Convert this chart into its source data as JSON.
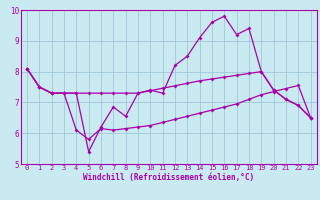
{
  "bg_color": "#c8eaf0",
  "grid_color": "#a0c8d8",
  "line_color": "#aa00aa",
  "xlabel": "Windchill (Refroidissement éolien,°C)",
  "xlim": [
    -0.5,
    23.5
  ],
  "ylim": [
    5,
    10
  ],
  "yticks": [
    5,
    6,
    7,
    8,
    9,
    10
  ],
  "xticks": [
    0,
    1,
    2,
    3,
    4,
    5,
    6,
    7,
    8,
    9,
    10,
    11,
    12,
    13,
    14,
    15,
    16,
    17,
    18,
    19,
    20,
    21,
    22,
    23
  ],
  "series1_x": [
    0,
    1,
    2,
    3,
    4,
    5,
    6,
    7,
    8,
    9,
    10,
    11,
    12,
    13,
    14,
    15,
    16,
    17,
    18,
    19,
    20,
    21,
    22,
    23
  ],
  "series1_y": [
    8.1,
    7.5,
    7.3,
    7.3,
    7.3,
    5.4,
    6.2,
    6.85,
    6.55,
    7.3,
    7.4,
    7.3,
    8.2,
    8.5,
    9.1,
    9.6,
    9.8,
    9.2,
    9.4,
    8.0,
    7.4,
    7.1,
    6.9,
    6.5
  ],
  "series2_x": [
    0,
    1,
    2,
    3,
    4,
    5,
    6,
    7,
    8,
    9,
    10,
    11,
    12,
    13,
    14,
    15,
    16,
    17,
    18,
    19,
    20,
    21,
    22,
    23
  ],
  "series2_y": [
    8.1,
    7.5,
    7.3,
    7.3,
    6.1,
    5.8,
    6.15,
    6.1,
    6.15,
    6.2,
    6.25,
    6.35,
    6.45,
    6.55,
    6.65,
    6.75,
    6.85,
    6.95,
    7.1,
    7.25,
    7.35,
    7.45,
    7.55,
    6.5
  ],
  "series3_x": [
    0,
    1,
    2,
    3,
    4,
    5,
    6,
    7,
    8,
    9,
    10,
    11,
    12,
    13,
    14,
    15,
    16,
    17,
    18,
    19,
    20,
    21,
    22,
    23
  ],
  "series3_y": [
    8.1,
    7.5,
    7.3,
    7.3,
    7.3,
    7.3,
    7.3,
    7.3,
    7.3,
    7.3,
    7.38,
    7.46,
    7.54,
    7.62,
    7.7,
    7.76,
    7.82,
    7.88,
    7.94,
    8.0,
    7.4,
    7.1,
    6.9,
    6.5
  ],
  "xlabel_fontsize": 5.5,
  "tick_fontsize": 5.0,
  "linewidth": 0.9,
  "markersize": 2.0
}
